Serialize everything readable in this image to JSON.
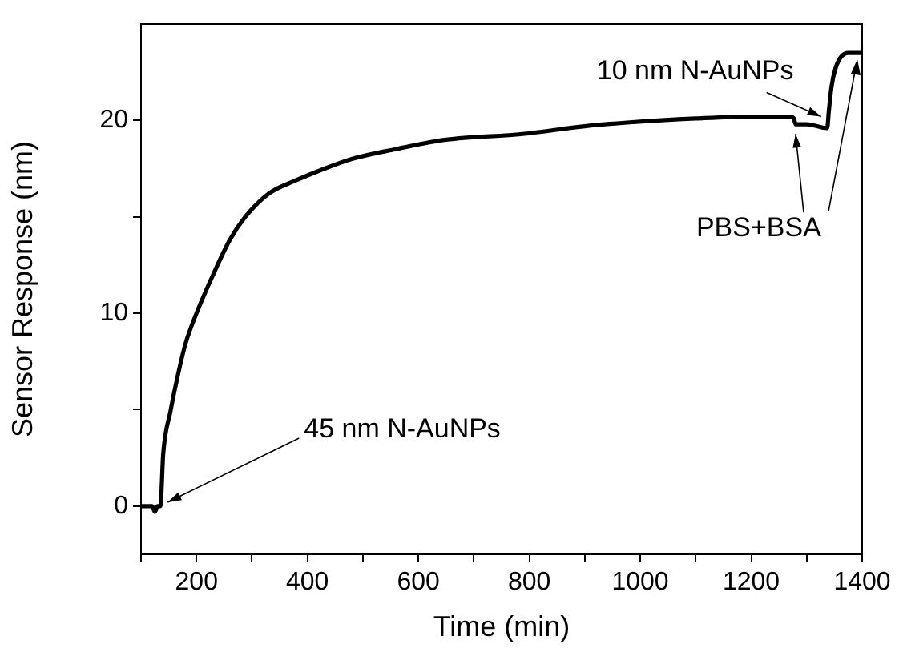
{
  "chart_data": {
    "type": "line",
    "xlabel": "Time (min)",
    "ylabel": "Sensor Response (nm)",
    "xlim": [
      100,
      1400
    ],
    "ylim": [
      -2.5,
      25
    ],
    "xticks": [
      {
        "value": 100,
        "label": null
      },
      200,
      {
        "value": 300,
        "label": null
      },
      400,
      {
        "value": 500,
        "label": null
      },
      600,
      {
        "value": 700,
        "label": null
      },
      800,
      {
        "value": 900,
        "label": null
      },
      1000,
      {
        "value": 1100,
        "label": null
      },
      1200,
      {
        "value": 1300,
        "label": null
      },
      1400
    ],
    "yticks": [
      0,
      {
        "value": 5,
        "label": null
      },
      10,
      {
        "value": 15,
        "label": null
      },
      20
    ],
    "grid": false,
    "legend": false,
    "marker": "none",
    "line_style": "solid",
    "series": [
      {
        "color": "#000000",
        "x": [
          100,
          120,
          125,
          130,
          135,
          140,
          153,
          165,
          180,
          200,
          230,
          260,
          288,
          330,
          380,
          422,
          480,
          557,
          650,
          788,
          900,
          981,
          1100,
          1200,
          1270,
          1277,
          1280,
          1300,
          1337,
          1340,
          1345,
          1352,
          1362,
          1375,
          1400
        ],
        "values": [
          0,
          0,
          -0.3,
          0,
          0,
          2.7,
          4.9,
          6.6,
          8.4,
          10,
          12,
          13.8,
          15,
          16.2,
          16.9,
          17.4,
          18,
          18.5,
          19.0,
          19.3,
          19.7,
          19.9,
          20.1,
          20.2,
          20.2,
          20.1,
          19.8,
          19.8,
          19.6,
          20.5,
          21.8,
          22.7,
          23.3,
          23.5,
          23.5
        ]
      }
    ],
    "annotations": [
      {
        "text": "45 nm N-AuNPs",
        "x": 148,
        "y": 0.2
      },
      {
        "text": "10 nm N-AuNPs",
        "x": 1326,
        "y": 20.2
      },
      {
        "text": "PBS+BSA",
        "x": 1280,
        "y": 19.3
      }
    ]
  }
}
